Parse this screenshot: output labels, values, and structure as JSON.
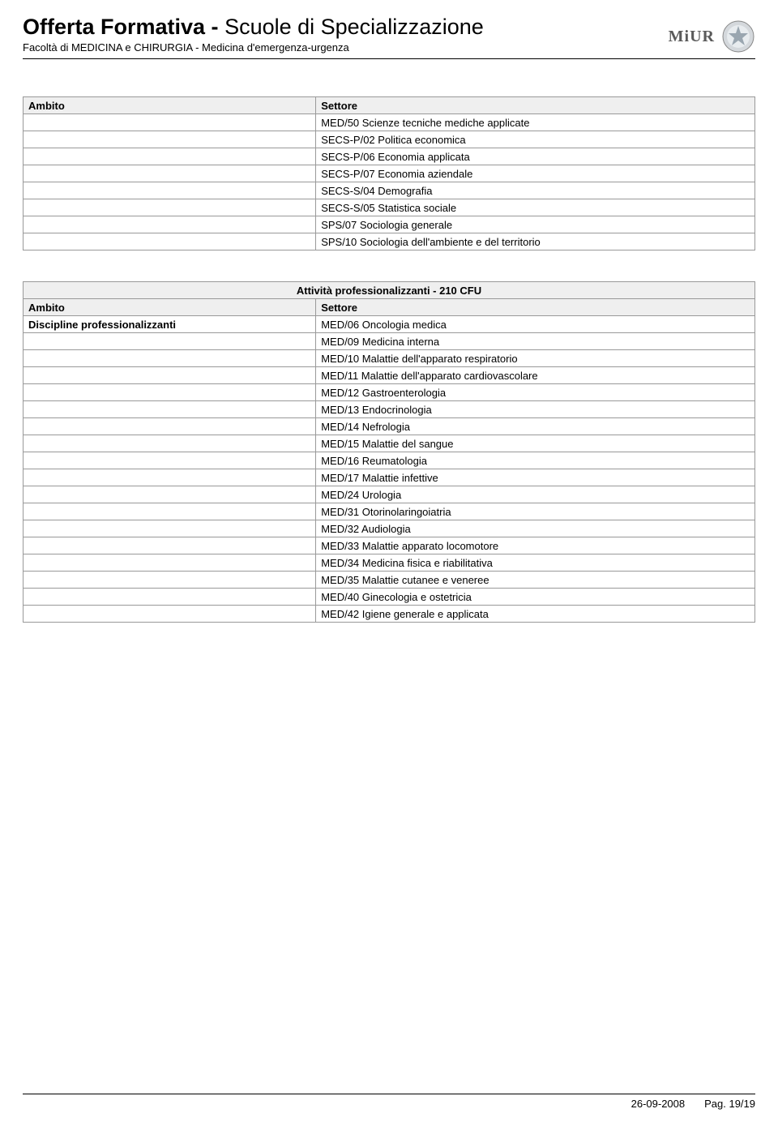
{
  "header": {
    "title_part1": "Offerta Formativa - ",
    "title_part2": " Scuole di Specializzazione",
    "subtitle": "Facoltà di MEDICINA e CHIRURGIA - Medicina d'emergenza-urgenza",
    "logo_text": "MiUR"
  },
  "table1": {
    "col_ambito": "Ambito",
    "col_settore": "Settore",
    "rows": [
      {
        "ambito": "",
        "settore": "MED/50 Scienze tecniche mediche applicate"
      },
      {
        "ambito": "",
        "settore": "SECS-P/02 Politica economica"
      },
      {
        "ambito": "",
        "settore": "SECS-P/06 Economia applicata"
      },
      {
        "ambito": "",
        "settore": "SECS-P/07 Economia aziendale"
      },
      {
        "ambito": "",
        "settore": "SECS-S/04 Demografia"
      },
      {
        "ambito": "",
        "settore": "SECS-S/05 Statistica sociale"
      },
      {
        "ambito": "",
        "settore": "SPS/07 Sociologia generale"
      },
      {
        "ambito": "",
        "settore": "SPS/10 Sociologia dell'ambiente e del territorio"
      }
    ]
  },
  "table2": {
    "title": "Attività professionalizzanti - 210 CFU",
    "col_ambito": "Ambito",
    "col_settore": "Settore",
    "rows": [
      {
        "ambito": "Discipline professionalizzanti",
        "settore": "MED/06 Oncologia medica"
      },
      {
        "ambito": "",
        "settore": "MED/09 Medicina interna"
      },
      {
        "ambito": "",
        "settore": "MED/10 Malattie dell'apparato respiratorio"
      },
      {
        "ambito": "",
        "settore": "MED/11 Malattie dell'apparato cardiovascolare"
      },
      {
        "ambito": "",
        "settore": "MED/12 Gastroenterologia"
      },
      {
        "ambito": "",
        "settore": "MED/13 Endocrinologia"
      },
      {
        "ambito": "",
        "settore": "MED/14 Nefrologia"
      },
      {
        "ambito": "",
        "settore": "MED/15 Malattie del sangue"
      },
      {
        "ambito": "",
        "settore": "MED/16 Reumatologia"
      },
      {
        "ambito": "",
        "settore": "MED/17 Malattie infettive"
      },
      {
        "ambito": "",
        "settore": "MED/24 Urologia"
      },
      {
        "ambito": "",
        "settore": "MED/31 Otorinolaringoiatria"
      },
      {
        "ambito": "",
        "settore": "MED/32 Audiologia"
      },
      {
        "ambito": "",
        "settore": "MED/33 Malattie apparato locomotore"
      },
      {
        "ambito": "",
        "settore": "MED/34 Medicina fisica e riabilitativa"
      },
      {
        "ambito": "",
        "settore": "MED/35 Malattie cutanee e veneree"
      },
      {
        "ambito": "",
        "settore": "MED/40 Ginecologia e ostetricia"
      },
      {
        "ambito": "",
        "settore": "MED/42 Igiene generale e applicata"
      }
    ]
  },
  "footer": {
    "date": "26-09-2008",
    "page": "Pag. 19/19"
  },
  "style": {
    "header_bg": "#efefef",
    "border_color": "#999999",
    "text_color": "#000000",
    "background": "#ffffff",
    "title_fontsize": 27,
    "subtitle_fontsize": 13,
    "table_fontsize": 13
  }
}
